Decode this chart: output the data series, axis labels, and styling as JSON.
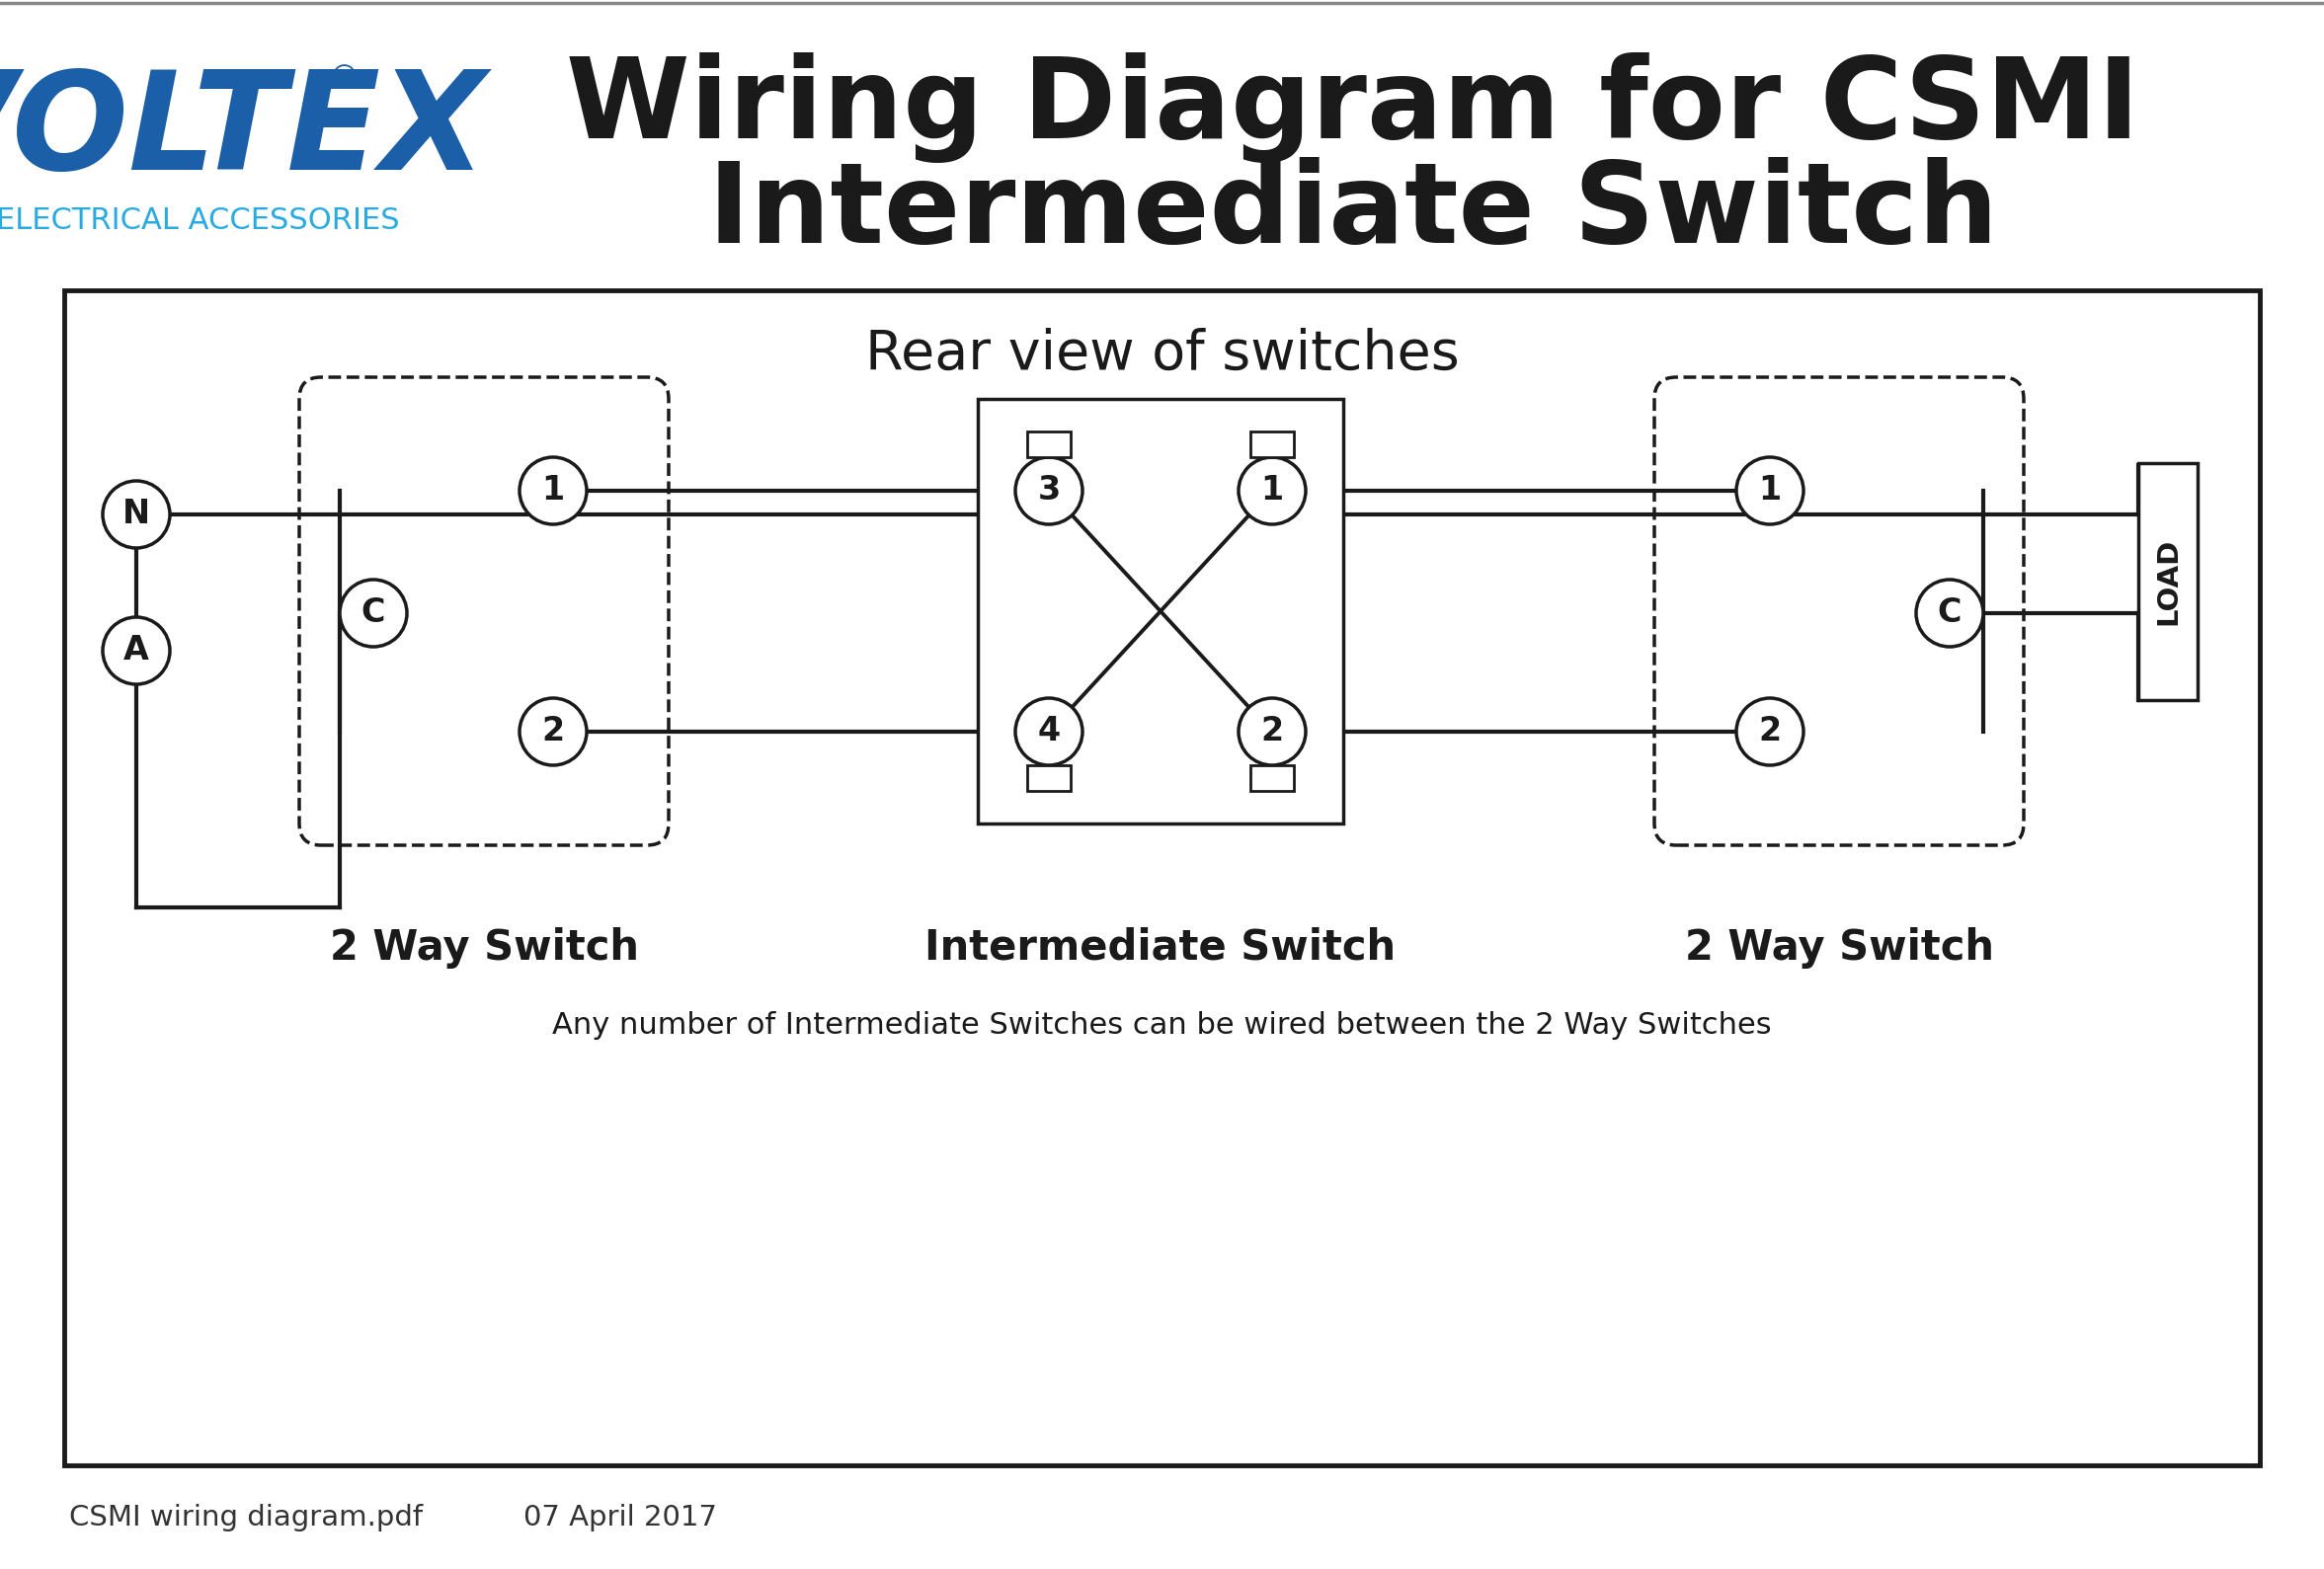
{
  "title_line1": "Wiring Diagram for CSMI",
  "title_line2": "Intermediate Switch",
  "voltex_text": "VOLTEX",
  "voltex_subtitle": "ELECTRICAL ACCESSORIES",
  "voltex_color": "#1a5fa8",
  "voltex_subtitle_color": "#29abe2",
  "title_color": "#1a1a1a",
  "rear_view_text": "Rear view of switches",
  "switch1_label": "2 Way Switch",
  "switch2_label": "Intermediate Switch",
  "switch3_label": "2 Way Switch",
  "note_text": "Any number of Intermediate Switches can be wired between the 2 Way Switches",
  "footer_left": "CSMI wiring diagram.pdf",
  "footer_date": "07 April 2017",
  "bg_color": "#ffffff",
  "wire_color": "#1a1a1a",
  "label_color": "#1a1a1a"
}
